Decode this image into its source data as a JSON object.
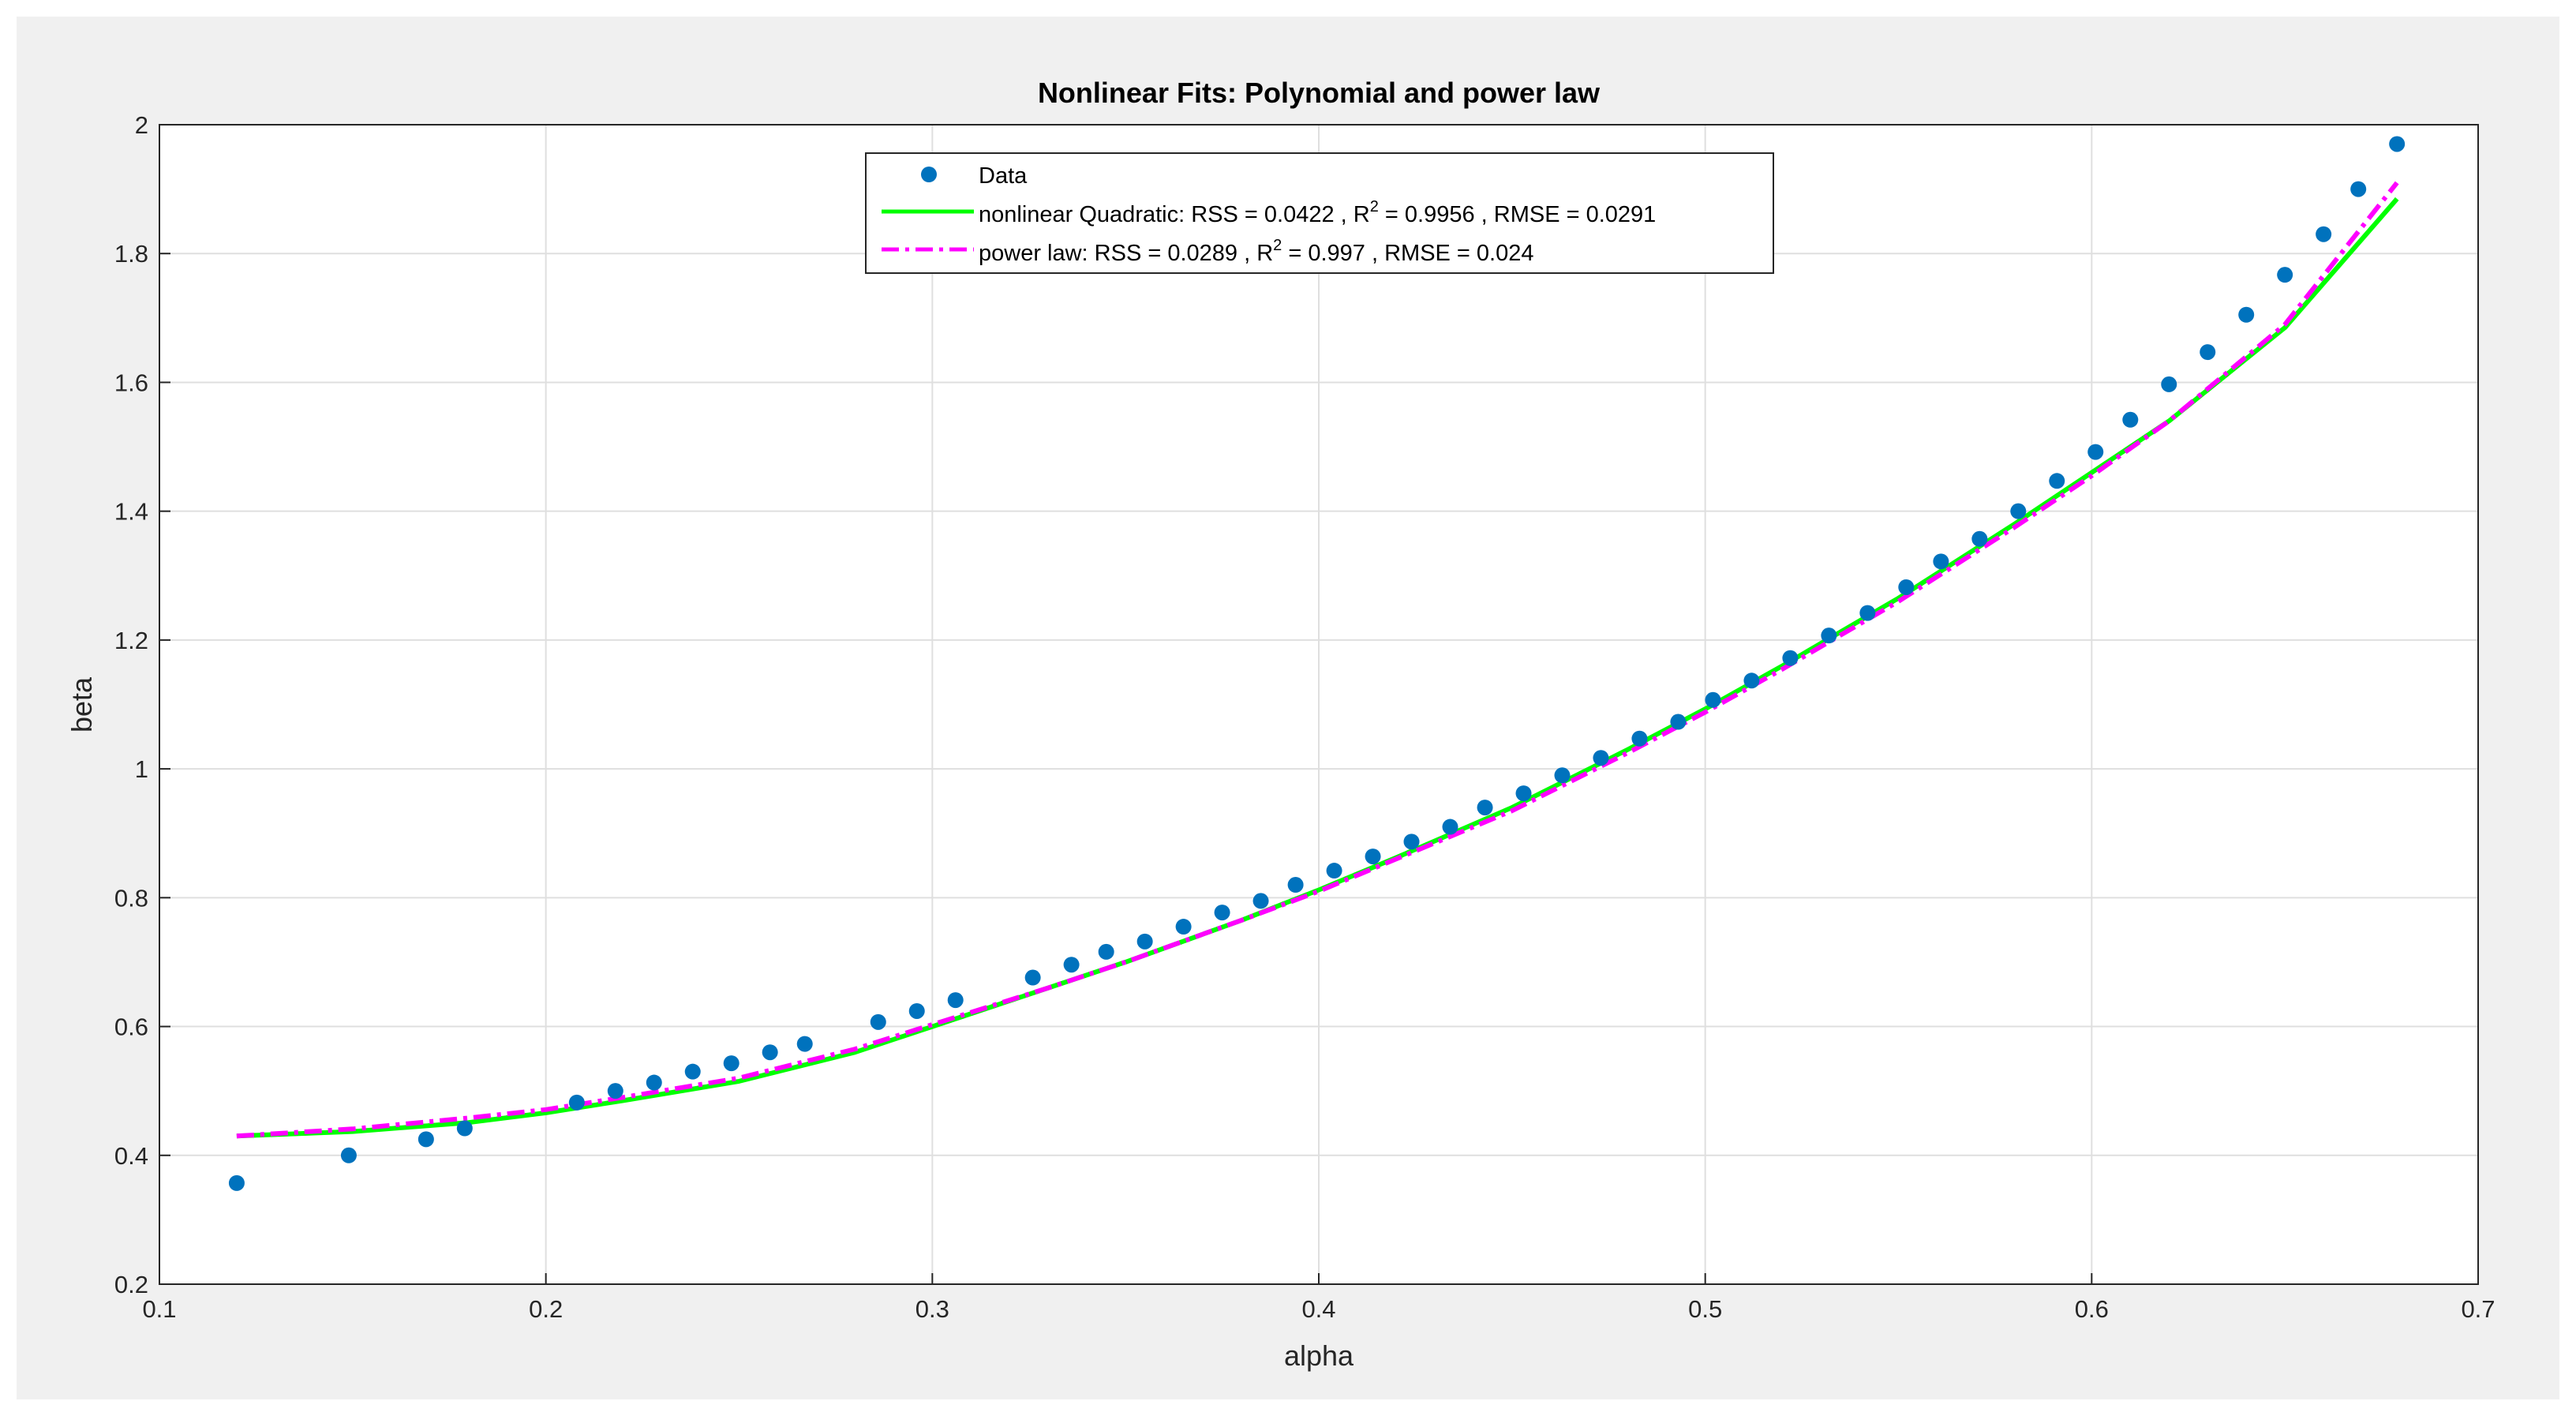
{
  "chart_data": {
    "type": "scatter",
    "title": "Nonlinear Fits: Polynomial and power law",
    "xlabel": "alpha",
    "ylabel": "beta",
    "xlim": [
      0.1,
      0.7
    ],
    "ylim": [
      0.2,
      2.0
    ],
    "xticks": [
      0.1,
      0.2,
      0.3,
      0.4,
      0.5,
      0.6,
      0.7
    ],
    "xtick_labels": [
      "0.1",
      "0.2",
      "0.3",
      "0.4",
      "0.5",
      "0.6",
      "0.7"
    ],
    "yticks": [
      0.2,
      0.4,
      0.6,
      0.8,
      1.0,
      1.2,
      1.4,
      1.6,
      1.8,
      2.0
    ],
    "ytick_labels": [
      "0.2",
      "0.4",
      "0.6",
      "0.8",
      "1",
      "1.2",
      "1.4",
      "1.6",
      "1.8",
      "2"
    ],
    "grid": true,
    "legend_position": "top-center",
    "series": [
      {
        "name": "Data",
        "kind": "scatter",
        "color": "#0072BD",
        "x": [
          0.12,
          0.149,
          0.169,
          0.179,
          0.208,
          0.218,
          0.228,
          0.238,
          0.248,
          0.258,
          0.267,
          0.286,
          0.296,
          0.306,
          0.326,
          0.336,
          0.345,
          0.355,
          0.365,
          0.375,
          0.385,
          0.394,
          0.404,
          0.414,
          0.424,
          0.434,
          0.443,
          0.453,
          0.463,
          0.473,
          0.483,
          0.493,
          0.502,
          0.512,
          0.522,
          0.532,
          0.542,
          0.552,
          0.561,
          0.571,
          0.581,
          0.591,
          0.601,
          0.61,
          0.62,
          0.63,
          0.64,
          0.65,
          0.66,
          0.669,
          0.679
        ],
        "y": [
          0.357,
          0.4,
          0.425,
          0.442,
          0.482,
          0.5,
          0.513,
          0.53,
          0.543,
          0.56,
          0.573,
          0.607,
          0.624,
          0.641,
          0.676,
          0.696,
          0.716,
          0.732,
          0.755,
          0.777,
          0.795,
          0.82,
          0.842,
          0.864,
          0.887,
          0.91,
          0.94,
          0.962,
          0.99,
          1.017,
          1.047,
          1.073,
          1.107,
          1.137,
          1.172,
          1.207,
          1.242,
          1.282,
          1.322,
          1.357,
          1.4,
          1.447,
          1.492,
          1.542,
          1.597,
          1.647,
          1.705,
          1.767,
          1.83,
          1.9,
          1.97
        ]
      },
      {
        "name": "nonlinear Quadratic: RSS = 0.0422 , R^2 = 0.9956 , RMSE = 0.0291",
        "kind": "line",
        "style": "solid",
        "color": "#00FF00",
        "x": [
          0.12,
          0.15,
          0.18,
          0.2,
          0.22,
          0.25,
          0.28,
          0.3,
          0.33,
          0.35,
          0.38,
          0.4,
          0.42,
          0.45,
          0.48,
          0.5,
          0.52,
          0.55,
          0.58,
          0.6,
          0.62,
          0.65,
          0.679
        ],
        "y": [
          0.43,
          0.437,
          0.451,
          0.466,
          0.485,
          0.515,
          0.56,
          0.6,
          0.66,
          0.7,
          0.765,
          0.812,
          0.862,
          0.94,
          1.03,
          1.093,
          1.16,
          1.265,
          1.38,
          1.46,
          1.54,
          1.685,
          1.885
        ]
      },
      {
        "name": "power law: RSS = 0.0289 , R^2 = 0.997 , RMSE = 0.024",
        "kind": "line",
        "style": "dashdot",
        "color": "#FF00FF",
        "x": [
          0.12,
          0.15,
          0.18,
          0.2,
          0.22,
          0.25,
          0.28,
          0.3,
          0.33,
          0.35,
          0.38,
          0.4,
          0.42,
          0.45,
          0.48,
          0.5,
          0.52,
          0.55,
          0.58,
          0.6,
          0.62,
          0.65,
          0.679
        ],
        "y": [
          0.43,
          0.441,
          0.458,
          0.471,
          0.49,
          0.52,
          0.565,
          0.603,
          0.66,
          0.7,
          0.765,
          0.81,
          0.86,
          0.935,
          1.025,
          1.088,
          1.155,
          1.26,
          1.375,
          1.455,
          1.54,
          1.69,
          1.91
        ]
      }
    ]
  },
  "legend": {
    "data_label": "Data",
    "quad_prefix": "nonlinear Quadratic: RSS = 0.0422 , R",
    "quad_sup": "2",
    "quad_suffix": " = 0.9956 , RMSE = 0.0291",
    "power_prefix": "power law: RSS = 0.0289 , R",
    "power_sup": "2",
    "power_suffix": " = 0.997 , RMSE = 0.024"
  }
}
